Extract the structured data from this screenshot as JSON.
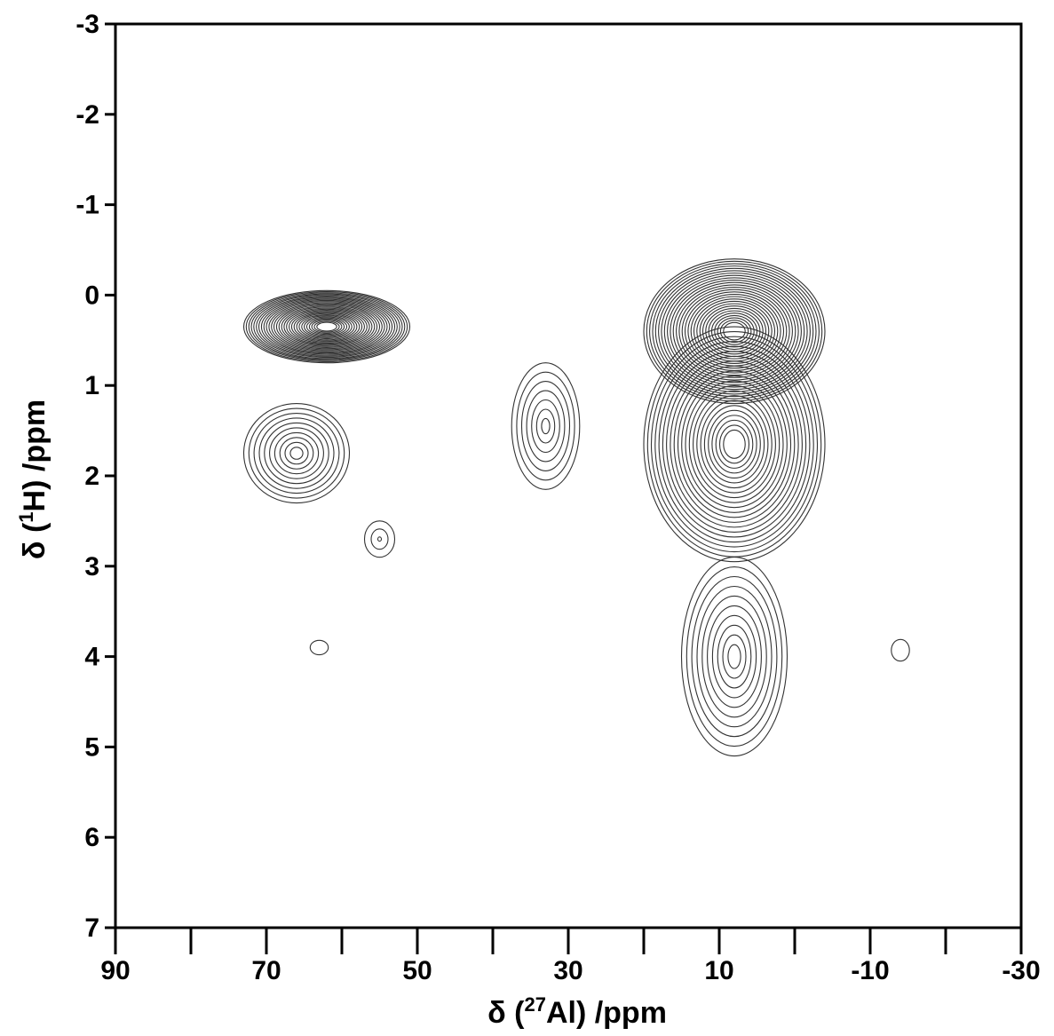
{
  "chart_data": {
    "type": "contour",
    "title": "",
    "xlabel": {
      "prefix": "δ (",
      "sup": "27",
      "element": "Al",
      "suffix": ") /ppm"
    },
    "ylabel": {
      "prefix": "δ (",
      "sup": "1",
      "element": "H",
      "suffix": ") /ppm"
    },
    "xlim": [
      90,
      -30
    ],
    "ylim": [
      -3,
      7
    ],
    "x_ticks": [
      90,
      70,
      50,
      30,
      10,
      -10,
      -30
    ],
    "x_tick_labels": [
      "90",
      "70",
      "50",
      "30",
      "10",
      "-10",
      "-30"
    ],
    "x_minor_ticks": [
      80,
      60,
      40,
      20,
      0,
      -20
    ],
    "y_ticks": [
      -3,
      -2,
      -1,
      0,
      1,
      2,
      3,
      4,
      5,
      6,
      7
    ],
    "y_tick_labels": [
      "-3",
      "-2",
      "-1",
      "0",
      "1",
      "2",
      "3",
      "4",
      "5",
      "6",
      "7"
    ],
    "grid": false,
    "peaks": [
      {
        "al": 62,
        "h": 0.35,
        "rx": 11,
        "ry": 0.4,
        "levels": 30
      },
      {
        "al": 66,
        "h": 1.75,
        "rx": 7,
        "ry": 0.55,
        "levels": 10
      },
      {
        "al": 55,
        "h": 2.7,
        "rx": 2,
        "ry": 0.2,
        "levels": 3
      },
      {
        "al": 63,
        "h": 3.9,
        "rx": 1.2,
        "ry": 0.08,
        "levels": 1
      },
      {
        "al": 33,
        "h": 1.45,
        "rx": 4.5,
        "ry": 0.7,
        "levels": 7
      },
      {
        "al": 8,
        "h": 0.4,
        "rx": 12,
        "ry": 0.8,
        "levels": 28
      },
      {
        "al": 8,
        "h": 1.65,
        "rx": 12,
        "ry": 1.3,
        "levels": 22
      },
      {
        "al": 8,
        "h": 4.0,
        "rx": 7,
        "ry": 1.1,
        "levels": 10
      },
      {
        "al": -14,
        "h": 3.93,
        "rx": 1.2,
        "ry": 0.12,
        "levels": 1
      }
    ]
  }
}
